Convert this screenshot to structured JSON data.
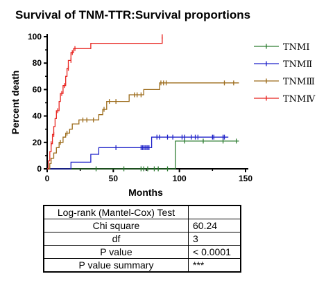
{
  "chart_data": {
    "type": "line",
    "title": "Survival of TNM-TTR:Survival proportions",
    "xlabel": "Months",
    "ylabel": "Percent death",
    "xlim": [
      0,
      150
    ],
    "ylim": [
      0,
      100
    ],
    "x_ticks": [
      0,
      50,
      100,
      150
    ],
    "y_ticks": [
      0,
      20,
      40,
      60,
      80,
      100
    ],
    "grid": false,
    "legend_position": "right",
    "step": true,
    "series": [
      {
        "name": "TNMⅠ",
        "color": "#2e7d32",
        "steps": [
          [
            0,
            0
          ],
          [
            97,
            0
          ],
          [
            97,
            21
          ],
          [
            145,
            21
          ]
        ],
        "censored": [
          [
            37,
            0
          ],
          [
            58,
            0
          ],
          [
            71,
            0
          ],
          [
            73,
            0
          ],
          [
            76,
            0
          ],
          [
            81,
            0
          ],
          [
            84,
            0
          ],
          [
            91,
            0
          ],
          [
            104,
            21
          ],
          [
            118,
            21
          ],
          [
            133,
            21
          ],
          [
            143,
            21
          ]
        ]
      },
      {
        "name": "TNMⅡ",
        "color": "#1f22c9",
        "steps": [
          [
            0,
            0
          ],
          [
            18,
            0
          ],
          [
            18,
            5
          ],
          [
            33,
            5
          ],
          [
            33,
            11
          ],
          [
            39,
            11
          ],
          [
            39,
            16
          ],
          [
            79,
            16
          ],
          [
            79,
            24
          ],
          [
            137,
            24
          ]
        ],
        "censored": [
          [
            52,
            16
          ],
          [
            71,
            16
          ],
          [
            72,
            16
          ],
          [
            73,
            16
          ],
          [
            74,
            16
          ],
          [
            75,
            16
          ],
          [
            76,
            16
          ],
          [
            77,
            16
          ],
          [
            83,
            24
          ],
          [
            85,
            24
          ],
          [
            91,
            24
          ],
          [
            95,
            24
          ],
          [
            102,
            24
          ],
          [
            104,
            24
          ],
          [
            109,
            24
          ],
          [
            112,
            24
          ],
          [
            114,
            24
          ],
          [
            125,
            24
          ],
          [
            126,
            24
          ],
          [
            133,
            24
          ],
          [
            134,
            24
          ]
        ]
      },
      {
        "name": "TNMⅢ",
        "color": "#9c6b1a",
        "steps": [
          [
            0,
            0
          ],
          [
            2,
            0
          ],
          [
            2,
            4
          ],
          [
            3,
            4
          ],
          [
            3,
            8
          ],
          [
            5,
            8
          ],
          [
            5,
            12
          ],
          [
            7,
            12
          ],
          [
            7,
            16
          ],
          [
            9,
            16
          ],
          [
            9,
            20
          ],
          [
            12,
            20
          ],
          [
            12,
            24
          ],
          [
            14,
            24
          ],
          [
            14,
            27
          ],
          [
            17,
            27
          ],
          [
            17,
            30
          ],
          [
            19,
            30
          ],
          [
            19,
            34
          ],
          [
            24,
            34
          ],
          [
            24,
            37
          ],
          [
            39,
            37
          ],
          [
            39,
            41
          ],
          [
            42,
            41
          ],
          [
            42,
            45
          ],
          [
            45,
            45
          ],
          [
            45,
            51
          ],
          [
            62,
            51
          ],
          [
            62,
            56
          ],
          [
            73,
            56
          ],
          [
            73,
            60
          ],
          [
            85,
            60
          ],
          [
            85,
            65
          ],
          [
            145,
            65
          ]
        ],
        "censored": [
          [
            10,
            20
          ],
          [
            15,
            27
          ],
          [
            27,
            37
          ],
          [
            30,
            37
          ],
          [
            35,
            37
          ],
          [
            43,
            45
          ],
          [
            47,
            51
          ],
          [
            52,
            51
          ],
          [
            66,
            56
          ],
          [
            68,
            56
          ],
          [
            71,
            56
          ],
          [
            86,
            65
          ],
          [
            88,
            65
          ],
          [
            90,
            65
          ],
          [
            134,
            65
          ],
          [
            141,
            65
          ]
        ]
      },
      {
        "name": "TNMⅣ",
        "color": "#e8231f",
        "steps": [
          [
            0,
            0
          ],
          [
            1,
            0
          ],
          [
            1,
            6
          ],
          [
            2,
            6
          ],
          [
            2,
            13
          ],
          [
            3,
            13
          ],
          [
            3,
            19
          ],
          [
            4,
            19
          ],
          [
            4,
            26
          ],
          [
            5,
            26
          ],
          [
            5,
            32
          ],
          [
            6,
            32
          ],
          [
            6,
            38
          ],
          [
            7,
            38
          ],
          [
            7,
            44
          ],
          [
            9,
            44
          ],
          [
            9,
            51
          ],
          [
            10,
            51
          ],
          [
            10,
            57
          ],
          [
            12,
            57
          ],
          [
            12,
            63
          ],
          [
            14,
            63
          ],
          [
            14,
            70
          ],
          [
            15,
            70
          ],
          [
            15,
            76
          ],
          [
            16,
            76
          ],
          [
            16,
            82
          ],
          [
            18,
            82
          ],
          [
            18,
            88
          ],
          [
            20,
            88
          ],
          [
            20,
            91
          ],
          [
            33,
            91
          ],
          [
            33,
            95
          ],
          [
            87,
            95
          ],
          [
            87,
            100
          ]
        ],
        "censored": [
          [
            3,
            19
          ],
          [
            5,
            26
          ],
          [
            8,
            44
          ],
          [
            11,
            57
          ],
          [
            13,
            63
          ],
          [
            16,
            76
          ],
          [
            18,
            82
          ],
          [
            19,
            88
          ],
          [
            21,
            91
          ],
          [
            87,
            100
          ]
        ]
      }
    ]
  },
  "stats_table": {
    "rows": [
      {
        "label": "Log-rank (Mantel-Cox) Test",
        "value": ""
      },
      {
        "label": "Chi square",
        "value": "60.24"
      },
      {
        "label": "df",
        "value": "3"
      },
      {
        "label": "P value",
        "value": "< 0.0001"
      },
      {
        "label": "P value summary",
        "value": "***"
      }
    ]
  }
}
